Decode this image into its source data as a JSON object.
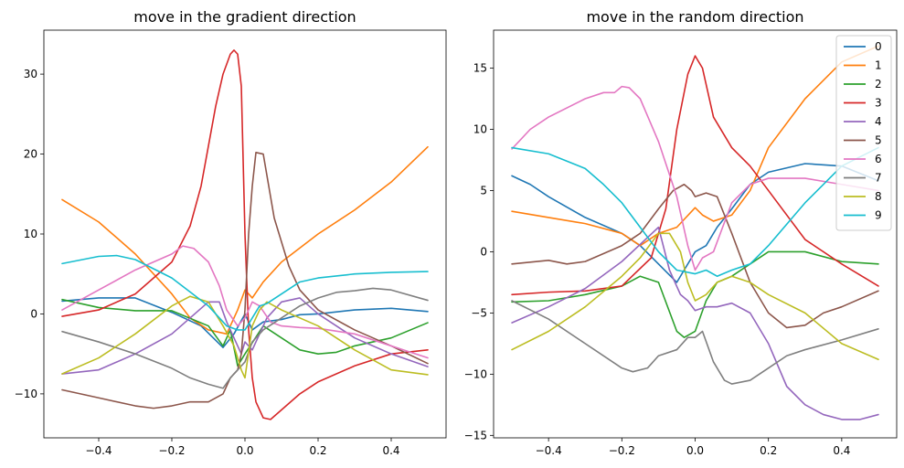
{
  "colors": [
    "#1f77b4",
    "#ff7f0e",
    "#2ca02c",
    "#d62728",
    "#9467bd",
    "#8c564b",
    "#e377c2",
    "#7f7f7f",
    "#bcbd22",
    "#17becf"
  ],
  "chart_data": [
    {
      "type": "line",
      "title": "move in the gradient direction",
      "xlabel": "",
      "ylabel": "",
      "xlim": [
        -0.55,
        0.55
      ],
      "ylim": [
        -15.5,
        35.5
      ],
      "xticks": [
        -0.4,
        -0.2,
        0.0,
        0.2,
        0.4
      ],
      "xtick_labels": [
        "−0.4",
        "−0.2",
        "0.0",
        "0.2",
        "0.4"
      ],
      "yticks": [
        -10,
        0,
        10,
        20,
        30
      ],
      "ytick_labels": [
        "−10",
        "0",
        "10",
        "20",
        "30"
      ],
      "grid": false,
      "legend": null,
      "series": [
        {
          "x": [
            -0.5,
            -0.4,
            -0.3,
            -0.2,
            -0.12,
            -0.06,
            -0.03,
            0.0,
            0.02,
            0.05,
            0.1,
            0.15,
            0.2,
            0.3,
            0.4,
            0.5
          ],
          "y": [
            1.6,
            2.0,
            2.0,
            0.2,
            -1.5,
            -4.2,
            -2.5,
            0.0,
            -2.0,
            -1.0,
            -0.7,
            -0.1,
            0.0,
            0.5,
            0.7,
            0.3
          ]
        },
        {
          "x": [
            -0.5,
            -0.4,
            -0.3,
            -0.2,
            -0.15,
            -0.1,
            -0.05,
            -0.02,
            0.0,
            0.02,
            0.05,
            0.1,
            0.2,
            0.3,
            0.4,
            0.5
          ],
          "y": [
            14.3,
            11.5,
            7.5,
            2.5,
            -0.5,
            -2.0,
            -2.5,
            0.5,
            3.0,
            2.0,
            4.0,
            6.5,
            10.0,
            13.0,
            16.5,
            20.9
          ]
        },
        {
          "x": [
            -0.5,
            -0.4,
            -0.3,
            -0.2,
            -0.1,
            -0.06,
            -0.04,
            -0.02,
            0.0,
            0.05,
            0.1,
            0.15,
            0.2,
            0.25,
            0.3,
            0.4,
            0.5
          ],
          "y": [
            1.8,
            0.8,
            0.4,
            0.4,
            -1.5,
            -4.0,
            -2.0,
            -6.5,
            -5.0,
            -1.5,
            -3.0,
            -4.5,
            -5.0,
            -4.8,
            -4.0,
            -3.0,
            -1.1
          ]
        },
        {
          "x": [
            -0.5,
            -0.4,
            -0.3,
            -0.2,
            -0.15,
            -0.12,
            -0.1,
            -0.08,
            -0.06,
            -0.04,
            -0.03,
            -0.02,
            -0.01,
            0.0,
            0.01,
            0.02,
            0.03,
            0.05,
            0.07,
            0.1,
            0.15,
            0.2,
            0.3,
            0.4,
            0.5
          ],
          "y": [
            -0.3,
            0.5,
            2.5,
            6.5,
            11.0,
            16.0,
            21.0,
            26.0,
            30.0,
            32.5,
            33.0,
            32.5,
            28.5,
            10.0,
            -2.0,
            -8.0,
            -11.0,
            -13.0,
            -13.2,
            -12.0,
            -10.0,
            -8.5,
            -6.5,
            -5.0,
            -4.5
          ]
        },
        {
          "x": [
            -0.5,
            -0.4,
            -0.3,
            -0.2,
            -0.15,
            -0.1,
            -0.07,
            -0.05,
            -0.03,
            -0.01,
            0.0,
            0.02,
            0.04,
            0.06,
            0.1,
            0.15,
            0.2,
            0.3,
            0.4,
            0.5
          ],
          "y": [
            -7.5,
            -7.0,
            -5.0,
            -2.5,
            -0.5,
            1.5,
            1.5,
            -1.0,
            -3.0,
            -5.0,
            -3.5,
            -4.5,
            -2.5,
            -0.5,
            1.5,
            2.0,
            0.0,
            -3.0,
            -5.0,
            -6.6
          ]
        },
        {
          "x": [
            -0.5,
            -0.4,
            -0.3,
            -0.25,
            -0.2,
            -0.15,
            -0.1,
            -0.06,
            -0.04,
            -0.02,
            -0.01,
            0.0,
            0.01,
            0.02,
            0.03,
            0.05,
            0.08,
            0.12,
            0.15,
            0.2,
            0.3,
            0.4,
            0.5
          ],
          "y": [
            -9.5,
            -10.5,
            -11.5,
            -11.8,
            -11.5,
            -11.0,
            -11.0,
            -10.0,
            -8.0,
            -7.0,
            -5.0,
            0.5,
            10.0,
            16.0,
            20.2,
            20.0,
            12.0,
            6.0,
            3.0,
            0.5,
            -2.0,
            -4.0,
            -6.2
          ]
        },
        {
          "x": [
            -0.5,
            -0.4,
            -0.3,
            -0.2,
            -0.17,
            -0.14,
            -0.1,
            -0.07,
            -0.05,
            -0.02,
            0.0,
            0.02,
            0.04,
            0.07,
            0.1,
            0.15,
            0.2,
            0.3,
            0.4,
            0.5
          ],
          "y": [
            0.5,
            3.0,
            5.5,
            7.5,
            8.5,
            8.2,
            6.5,
            3.5,
            0.5,
            -1.5,
            -0.5,
            1.5,
            1.0,
            -1.0,
            -1.5,
            -1.7,
            -1.8,
            -2.5,
            -4.0,
            -5.5
          ]
        },
        {
          "x": [
            -0.5,
            -0.4,
            -0.3,
            -0.2,
            -0.15,
            -0.1,
            -0.06,
            -0.04,
            -0.02,
            0.0,
            0.02,
            0.05,
            0.1,
            0.15,
            0.2,
            0.25,
            0.3,
            0.35,
            0.4,
            0.5
          ],
          "y": [
            -2.2,
            -3.5,
            -5.0,
            -6.8,
            -8.0,
            -8.8,
            -9.3,
            -8.0,
            -7.0,
            -6.0,
            -3.5,
            -2.0,
            -0.5,
            1.0,
            2.0,
            2.7,
            2.9,
            3.2,
            3.0,
            1.7
          ]
        },
        {
          "x": [
            -0.5,
            -0.4,
            -0.3,
            -0.2,
            -0.15,
            -0.1,
            -0.06,
            -0.03,
            -0.01,
            0.0,
            0.02,
            0.04,
            0.06,
            0.1,
            0.15,
            0.2,
            0.3,
            0.4,
            0.5
          ],
          "y": [
            -7.5,
            -5.5,
            -2.5,
            1.0,
            2.2,
            1.5,
            -1.5,
            -4.0,
            -7.0,
            -8.0,
            -1.5,
            0.5,
            1.5,
            0.5,
            -0.5,
            -1.5,
            -4.5,
            -7.0,
            -7.6
          ]
        },
        {
          "x": [
            -0.5,
            -0.4,
            -0.35,
            -0.3,
            -0.2,
            -0.1,
            -0.05,
            -0.02,
            0.0,
            0.02,
            0.04,
            0.06,
            0.1,
            0.15,
            0.2,
            0.3,
            0.4,
            0.5
          ],
          "y": [
            6.3,
            7.2,
            7.3,
            6.8,
            4.5,
            1.0,
            -1.5,
            -2.0,
            -2.0,
            -0.5,
            1.0,
            1.3,
            2.5,
            4.0,
            4.5,
            5.0,
            5.2,
            5.3
          ]
        }
      ]
    },
    {
      "type": "line",
      "title": "move in the random direction",
      "xlabel": "",
      "ylabel": "",
      "xlim": [
        -0.55,
        0.55
      ],
      "ylim": [
        -15.2,
        18.1
      ],
      "xticks": [
        -0.4,
        -0.2,
        0.0,
        0.2,
        0.4
      ],
      "xtick_labels": [
        "−0.4",
        "−0.2",
        "0.0",
        "0.2",
        "0.4"
      ],
      "yticks": [
        -15,
        -10,
        -5,
        0,
        5,
        10,
        15
      ],
      "ytick_labels": [
        "−15",
        "−10",
        "−5",
        "0",
        "5",
        "10",
        "15"
      ],
      "grid": false,
      "legend": {
        "placement": "upper right",
        "entries": [
          "0",
          "1",
          "2",
          "3",
          "4",
          "5",
          "6",
          "7",
          "8",
          "9"
        ]
      },
      "series": [
        {
          "name": "0",
          "x": [
            -0.5,
            -0.45,
            -0.4,
            -0.3,
            -0.2,
            -0.15,
            -0.1,
            -0.05,
            0.0,
            0.03,
            0.06,
            0.1,
            0.15,
            0.2,
            0.3,
            0.4,
            0.5
          ],
          "y": [
            6.2,
            5.5,
            4.5,
            2.8,
            1.5,
            0.5,
            -1.0,
            -2.5,
            0.0,
            0.5,
            2.0,
            3.5,
            5.5,
            6.5,
            7.2,
            7.0,
            5.8
          ]
        },
        {
          "name": "1",
          "x": [
            -0.5,
            -0.4,
            -0.3,
            -0.2,
            -0.15,
            -0.1,
            -0.05,
            0.0,
            0.02,
            0.05,
            0.1,
            0.15,
            0.2,
            0.3,
            0.4,
            0.5
          ],
          "y": [
            3.3,
            2.8,
            2.3,
            1.5,
            0.5,
            1.5,
            2.0,
            3.6,
            3.0,
            2.5,
            3.0,
            5.0,
            8.5,
            12.5,
            15.5,
            16.8
          ]
        },
        {
          "name": "2",
          "x": [
            -0.5,
            -0.4,
            -0.3,
            -0.2,
            -0.15,
            -0.1,
            -0.05,
            -0.03,
            0.0,
            0.03,
            0.06,
            0.1,
            0.15,
            0.2,
            0.3,
            0.4,
            0.5
          ],
          "y": [
            -4.1,
            -4.0,
            -3.5,
            -2.8,
            -2.0,
            -2.5,
            -6.5,
            -7.0,
            -6.5,
            -4.0,
            -2.5,
            -2.0,
            -1.0,
            0.0,
            0.0,
            -0.8,
            -1.0
          ]
        },
        {
          "name": "3",
          "x": [
            -0.5,
            -0.4,
            -0.3,
            -0.2,
            -0.12,
            -0.08,
            -0.05,
            -0.02,
            0.0,
            0.02,
            0.05,
            0.1,
            0.15,
            0.2,
            0.3,
            0.4,
            0.5
          ],
          "y": [
            -3.5,
            -3.3,
            -3.2,
            -2.8,
            -0.5,
            3.5,
            10.0,
            14.5,
            16.0,
            15.0,
            11.0,
            8.5,
            7.0,
            5.0,
            1.0,
            -1.0,
            -2.8
          ]
        },
        {
          "name": "4",
          "x": [
            -0.5,
            -0.4,
            -0.3,
            -0.2,
            -0.1,
            -0.07,
            -0.04,
            -0.02,
            0.0,
            0.03,
            0.06,
            0.1,
            0.15,
            0.2,
            0.25,
            0.3,
            0.35,
            0.4,
            0.45,
            0.5
          ],
          "y": [
            -5.8,
            -4.5,
            -3.0,
            -0.8,
            2.0,
            -1.5,
            -3.5,
            -4.0,
            -4.8,
            -4.5,
            -4.5,
            -4.2,
            -5.0,
            -7.5,
            -11.0,
            -12.5,
            -13.3,
            -13.7,
            -13.7,
            -13.3
          ]
        },
        {
          "name": "5",
          "x": [
            -0.5,
            -0.4,
            -0.35,
            -0.3,
            -0.2,
            -0.15,
            -0.1,
            -0.06,
            -0.03,
            -0.01,
            0.0,
            0.03,
            0.06,
            0.1,
            0.15,
            0.2,
            0.25,
            0.3,
            0.35,
            0.4,
            0.5
          ],
          "y": [
            -1.0,
            -0.7,
            -1.0,
            -0.8,
            0.5,
            1.5,
            3.5,
            5.0,
            5.5,
            5.0,
            4.5,
            4.8,
            4.5,
            1.5,
            -2.5,
            -5.0,
            -6.2,
            -6.0,
            -5.0,
            -4.5,
            -3.2
          ]
        },
        {
          "name": "6",
          "x": [
            -0.5,
            -0.45,
            -0.4,
            -0.3,
            -0.25,
            -0.22,
            -0.2,
            -0.18,
            -0.15,
            -0.1,
            -0.05,
            -0.02,
            0.0,
            0.02,
            0.05,
            0.1,
            0.15,
            0.2,
            0.3,
            0.4,
            0.5
          ],
          "y": [
            8.4,
            10.0,
            11.0,
            12.5,
            13.0,
            13.0,
            13.5,
            13.4,
            12.5,
            9.0,
            4.5,
            0.5,
            -1.5,
            -0.5,
            0.0,
            4.0,
            5.5,
            6.0,
            6.0,
            5.5,
            5.0
          ]
        },
        {
          "name": "7",
          "x": [
            -0.5,
            -0.4,
            -0.3,
            -0.2,
            -0.17,
            -0.13,
            -0.1,
            -0.05,
            -0.02,
            0.0,
            0.02,
            0.05,
            0.08,
            0.1,
            0.15,
            0.2,
            0.25,
            0.3,
            0.4,
            0.5
          ],
          "y": [
            -4.0,
            -5.5,
            -7.5,
            -9.5,
            -9.8,
            -9.5,
            -8.5,
            -8.0,
            -7.0,
            -7.0,
            -6.5,
            -9.0,
            -10.5,
            -10.8,
            -10.5,
            -9.5,
            -8.5,
            -8.0,
            -7.2,
            -6.3
          ]
        },
        {
          "name": "8",
          "x": [
            -0.5,
            -0.4,
            -0.3,
            -0.2,
            -0.15,
            -0.1,
            -0.07,
            -0.04,
            -0.02,
            0.0,
            0.03,
            0.06,
            0.1,
            0.15,
            0.2,
            0.3,
            0.4,
            0.5
          ],
          "y": [
            -8.0,
            -6.5,
            -4.5,
            -2.0,
            -0.5,
            1.5,
            1.5,
            0.0,
            -2.5,
            -4.0,
            -3.5,
            -2.5,
            -2.0,
            -2.5,
            -3.5,
            -5.0,
            -7.5,
            -8.8
          ]
        },
        {
          "name": "9",
          "x": [
            -0.5,
            -0.4,
            -0.3,
            -0.25,
            -0.2,
            -0.15,
            -0.1,
            -0.05,
            0.0,
            0.03,
            0.06,
            0.1,
            0.15,
            0.2,
            0.3,
            0.4,
            0.5
          ],
          "y": [
            8.5,
            8.0,
            6.8,
            5.5,
            4.0,
            2.0,
            0.0,
            -1.5,
            -1.8,
            -1.5,
            -2.0,
            -1.5,
            -1.0,
            0.5,
            4.0,
            7.0,
            8.5
          ]
        }
      ]
    }
  ]
}
